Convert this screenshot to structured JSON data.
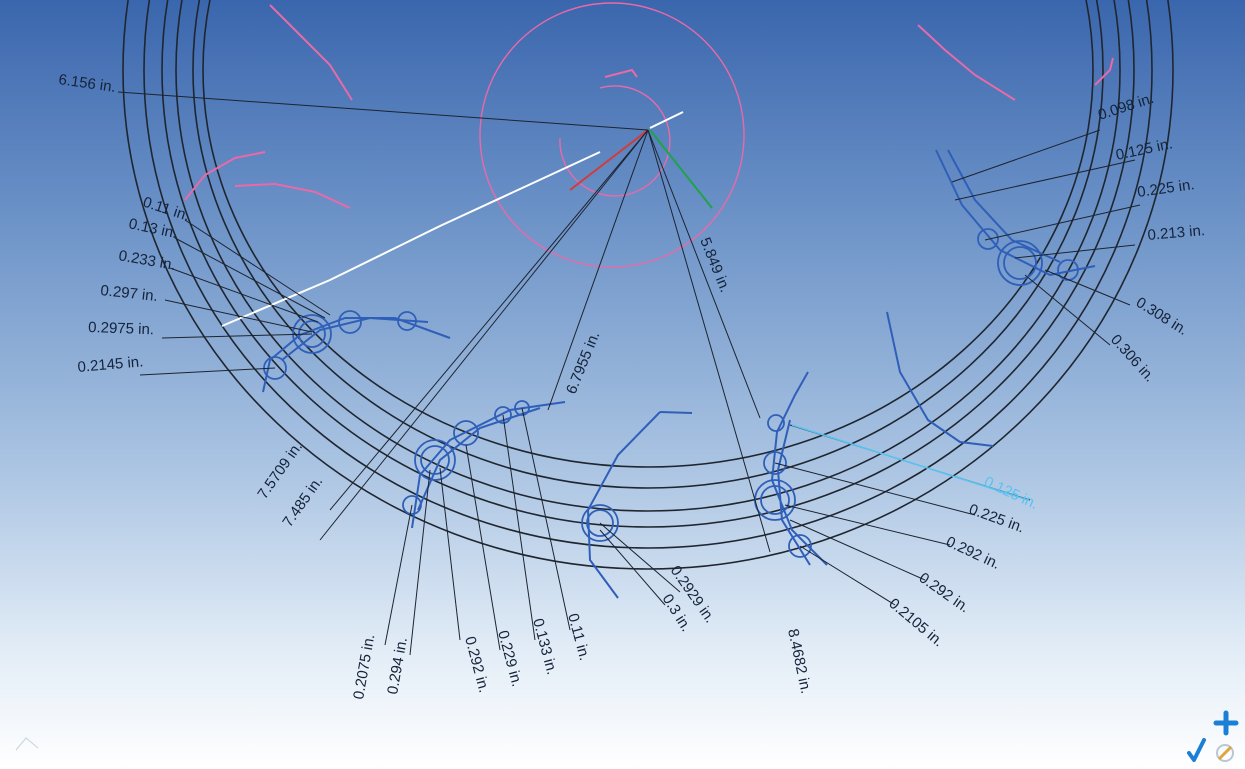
{
  "colors": {
    "background_top": "#3a66ad",
    "background_bottom": "#ffffff",
    "circle_lines": "#1f2630",
    "leader_lines": "#1c2430",
    "sketch_pink": "#e86aa8",
    "sketch_blue": "#2f5fb8",
    "selected_dimension": "#59c3f0",
    "sketch_white": "#ffffff",
    "axis_green": "#1fa34a",
    "axis_red": "#d33b3b"
  },
  "dimensions": [
    {
      "id": "d-6-156",
      "text": "6.156 in."
    },
    {
      "id": "d-5-849",
      "text": "5.849 in."
    },
    {
      "id": "d-6-7955",
      "text": "6.7955 in."
    },
    {
      "id": "d-7-5709",
      "text": "7.5709 in."
    },
    {
      "id": "d-7-485",
      "text": "7.485 in."
    },
    {
      "id": "d-8-4682",
      "text": "8.4682 in."
    },
    {
      "id": "d-0-11-left",
      "text": "0.11 in."
    },
    {
      "id": "d-0-13-left",
      "text": "0.13 in."
    },
    {
      "id": "d-0-233",
      "text": "0.233 in."
    },
    {
      "id": "d-0-297",
      "text": "0.297 in."
    },
    {
      "id": "d-0-2975",
      "text": "0.2975 in."
    },
    {
      "id": "d-0-2145",
      "text": "0.2145 in."
    },
    {
      "id": "d-0-098",
      "text": "0.098 in."
    },
    {
      "id": "d-0-125-right",
      "text": "0.125 in."
    },
    {
      "id": "d-0-225-right",
      "text": "0.225 in."
    },
    {
      "id": "d-0-213",
      "text": "0.213 in."
    },
    {
      "id": "d-0-308",
      "text": "0.308 in."
    },
    {
      "id": "d-0-306",
      "text": "0.306 in."
    },
    {
      "id": "d-0-125-selected",
      "text": "0.125 in.",
      "selected": true
    },
    {
      "id": "d-0-225-lower",
      "text": "0.225 in."
    },
    {
      "id": "d-0-292-a",
      "text": "0.292 in."
    },
    {
      "id": "d-0-292-b",
      "text": "0.292 in."
    },
    {
      "id": "d-0-2105",
      "text": "0.2105 in."
    },
    {
      "id": "d-0-2075",
      "text": "0.2075 in."
    },
    {
      "id": "d-0-294",
      "text": "0.294 in."
    },
    {
      "id": "d-0-292-c",
      "text": "0.292 in."
    },
    {
      "id": "d-0-229",
      "text": "0.229 in."
    },
    {
      "id": "d-0-133",
      "text": "0.133 in."
    },
    {
      "id": "d-0-11-bottom",
      "text": "0.11 in."
    },
    {
      "id": "d-0-2929",
      "text": "0.2929 in."
    },
    {
      "id": "d-0-3",
      "text": "0.3 in."
    }
  ],
  "toolbar": {
    "add_icon": "plus-icon",
    "accept_icon": "checkmark-icon",
    "clear_icon": "eraser-icon",
    "view_triad_icon": "axis-triad-icon"
  }
}
